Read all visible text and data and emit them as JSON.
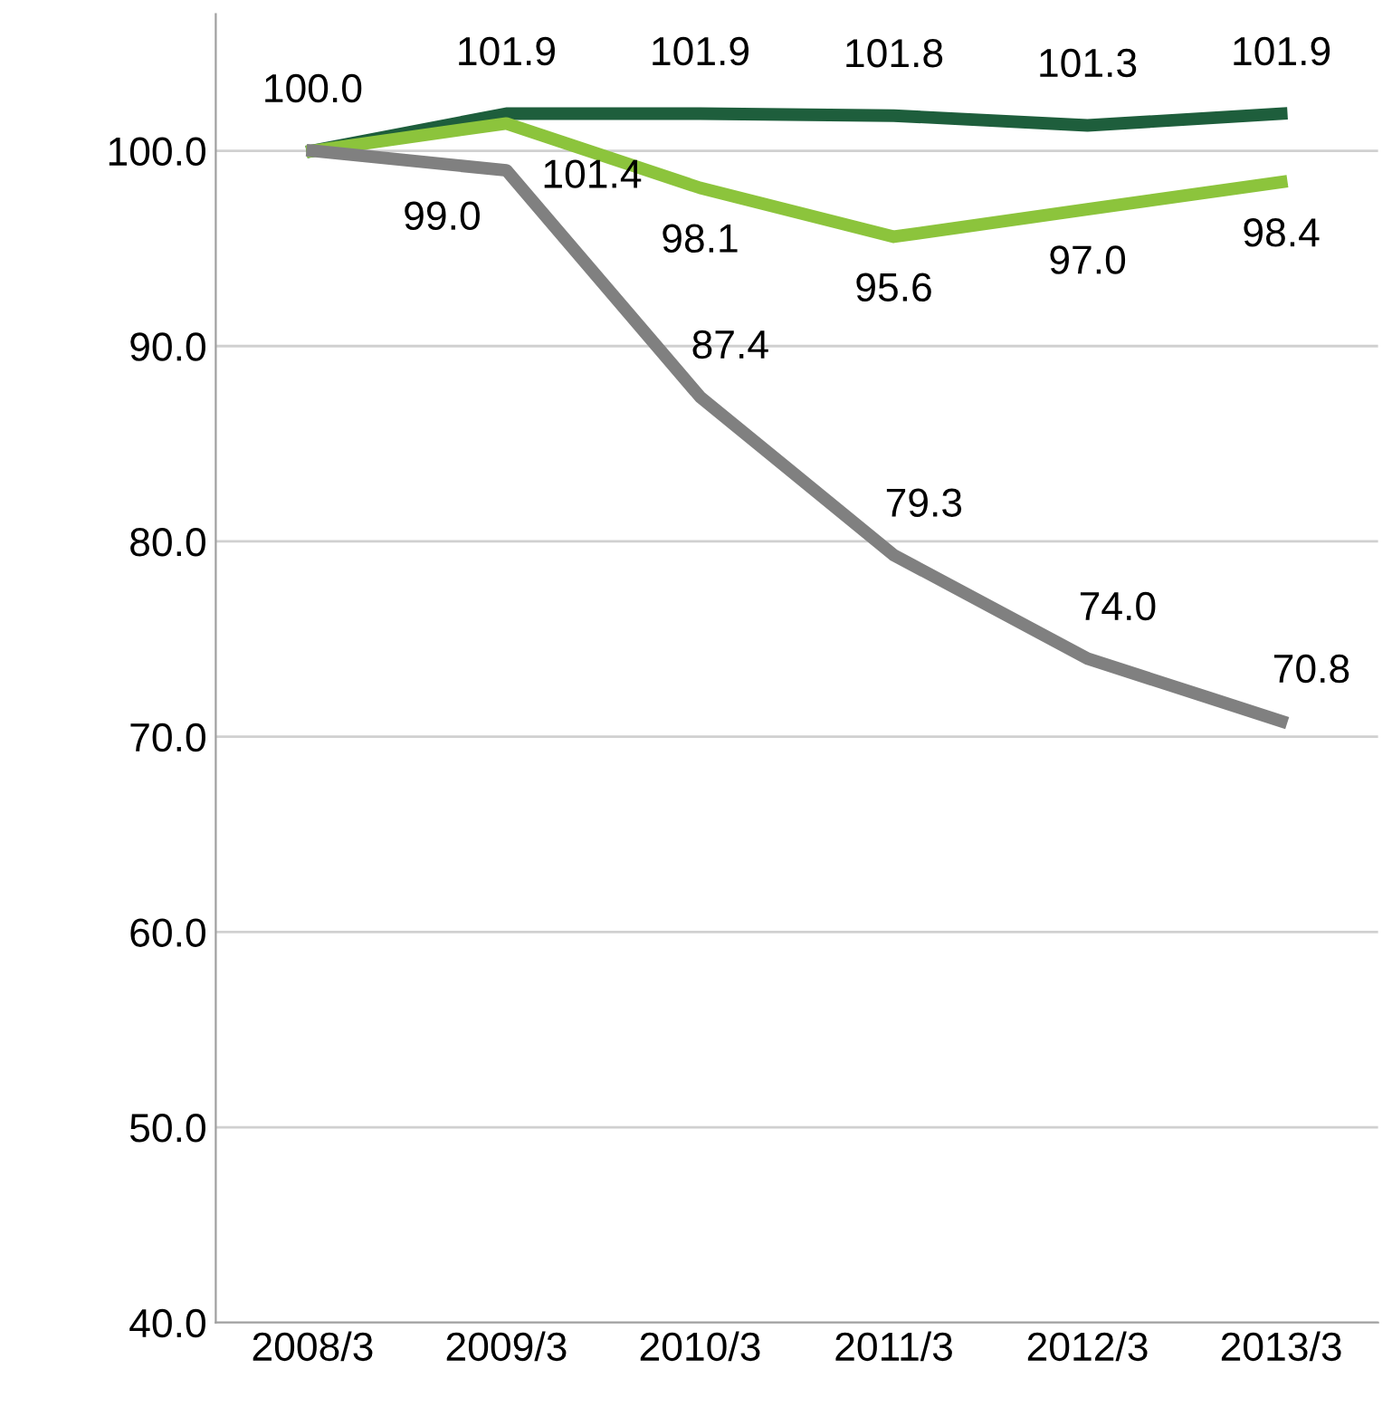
{
  "chart_data": {
    "type": "line",
    "categories": [
      "2008/3",
      "2009/3",
      "2010/3",
      "2011/3",
      "2012/3",
      "2013/3"
    ],
    "series": [
      {
        "color": "#1e5e3c",
        "values": [
          100.0,
          101.9,
          101.9,
          101.8,
          101.3,
          101.9
        ],
        "value_labels": [
          "100.0",
          "101.9",
          "101.9",
          "101.8",
          "101.3",
          "101.9"
        ]
      },
      {
        "color": "#8cc43c",
        "values": [
          100.0,
          101.4,
          98.1,
          95.6,
          97.0,
          98.4
        ],
        "value_labels": [
          null,
          "101.4",
          "98.1",
          "95.6",
          "97.0",
          "98.4"
        ]
      },
      {
        "color": "#808080",
        "values": [
          100.0,
          99.0,
          87.4,
          79.3,
          74.0,
          70.8
        ],
        "value_labels": [
          null,
          "99.0",
          "87.4",
          "79.3",
          "74.0",
          "70.8"
        ]
      }
    ],
    "ylim": [
      40,
      107
    ],
    "yticks": [
      {
        "value": 40,
        "label": "40.0"
      },
      {
        "value": 50,
        "label": "50.0"
      },
      {
        "value": 60,
        "label": "60.0"
      },
      {
        "value": 70,
        "label": "70.0"
      },
      {
        "value": 80,
        "label": "80.0"
      },
      {
        "value": 90,
        "label": "90.0"
      },
      {
        "value": 100,
        "label": "100.0"
      }
    ],
    "grid": "y",
    "marker": "none",
    "line_style": "solid"
  }
}
